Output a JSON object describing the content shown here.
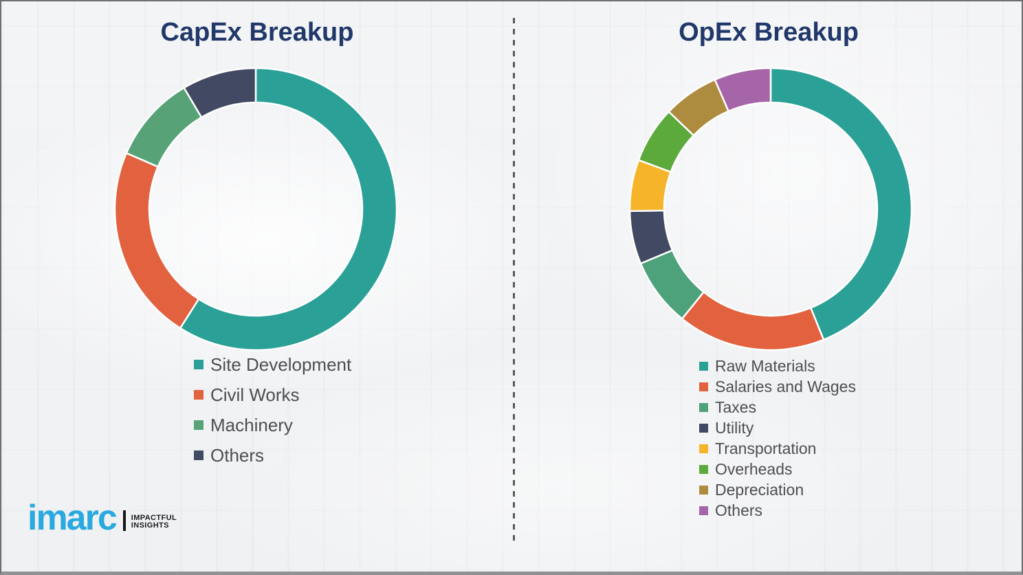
{
  "page": {
    "background": "#f2f3f5",
    "border_color": "#6b6e73",
    "divider_color": "#565a61"
  },
  "titles": {
    "title_color": "#21386b",
    "legend_text_color": "#4e4e50"
  },
  "chart_data": [
    {
      "type": "pie",
      "variant": "donut",
      "name": "capex",
      "title": "CapEx Breakup",
      "labels": [
        "Site Development",
        "Civil Works",
        "Machinery",
        "Others"
      ],
      "values": [
        59,
        22.5,
        10,
        8.5
      ],
      "unit": "percent-estimated-from-arc-angles",
      "colors": [
        "#2aa096",
        "#e2613e",
        "#57a377",
        "#424a63"
      ],
      "start_angle_deg": 0,
      "direction": "clockwise",
      "legend_position": "below-left",
      "segment_gap_color": "#ffffff"
    },
    {
      "type": "pie",
      "variant": "donut",
      "name": "opex",
      "title": "OpEx Breakup",
      "labels": [
        "Raw Materials",
        "Salaries and Wages",
        "Taxes",
        "Utility",
        "Transportation",
        "Overheads",
        "Depreciation",
        "Others"
      ],
      "values": [
        44,
        17,
        7.9,
        6.1,
        5.9,
        6.5,
        6.4,
        6.5
      ],
      "unit": "percent-estimated-from-arc-angles",
      "colors": [
        "#2aa096",
        "#e2613e",
        "#4da17b",
        "#424a63",
        "#f6b42a",
        "#5ca93c",
        "#ad8c3f",
        "#a565a8"
      ],
      "start_angle_deg": 0,
      "direction": "clockwise",
      "legend_position": "below-left",
      "segment_gap_color": "#ffffff"
    }
  ],
  "logo": {
    "brand": "imarc",
    "brand_color": "#2aa9e0",
    "tagline_line1": "IMPACTFUL",
    "tagline_line2": "INSIGHTS"
  }
}
